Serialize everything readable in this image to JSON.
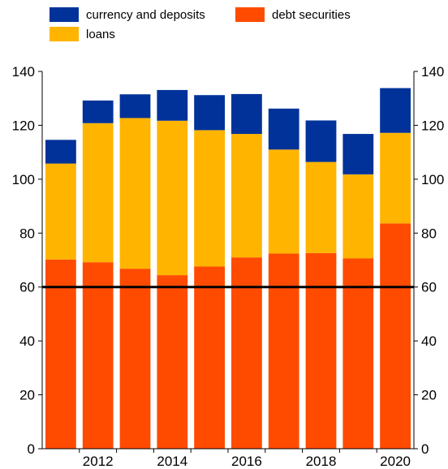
{
  "chart_data": {
    "type": "bar",
    "stacked": true,
    "categories": [
      "2011",
      "2012",
      "2013",
      "2014",
      "2015",
      "2016",
      "2017",
      "2018",
      "2019",
      "2020"
    ],
    "x_tick_labels": [
      "",
      "2012",
      "",
      "2014",
      "",
      "2016",
      "",
      "2018",
      "",
      "2020"
    ],
    "series": [
      {
        "name": "debt securities",
        "color": "#ff4b00",
        "values": [
          70.2,
          69.2,
          66.8,
          64.4,
          67.6,
          71.0,
          72.4,
          72.6,
          70.6,
          83.6
        ]
      },
      {
        "name": "loans",
        "color": "#ffb400",
        "values": [
          35.6,
          51.6,
          55.9,
          57.3,
          50.6,
          45.8,
          38.6,
          33.8,
          31.2,
          33.6
        ]
      },
      {
        "name": "currency and deposits",
        "color": "#003299",
        "values": [
          8.8,
          8.4,
          8.8,
          11.4,
          13.0,
          14.8,
          15.2,
          15.4,
          15.0,
          16.6
        ]
      }
    ],
    "legend_order": [
      "currency and deposits",
      "debt securities",
      "loans"
    ],
    "reference_line": {
      "value": 60,
      "color": "#000000"
    },
    "y_ticks": [
      0,
      20,
      40,
      60,
      80,
      100,
      120,
      140
    ],
    "ylim": [
      0,
      140
    ],
    "y_axis_both_sides": true,
    "grid": false,
    "legend_position": "top"
  }
}
